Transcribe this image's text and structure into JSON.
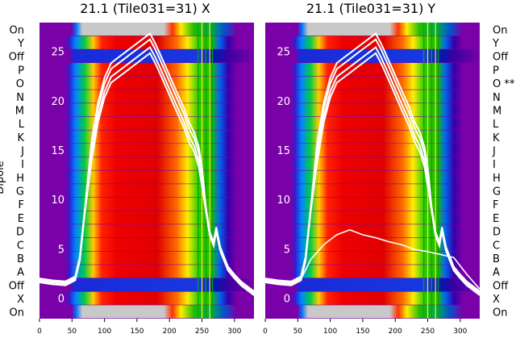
{
  "chart_data": [
    {
      "type": "heatmap",
      "title": "21.1 (Tile031=31) X",
      "ylabel": "Dipole",
      "x_ticks": [
        0,
        50,
        100,
        150,
        200,
        250,
        300
      ],
      "xlim": [
        0,
        330
      ],
      "row_labels": [
        "On",
        "Y",
        "Off",
        "P",
        "O",
        "N",
        "M",
        "L",
        "K",
        "J",
        "I",
        "H",
        "G",
        "F",
        "E",
        "D",
        "C",
        "B",
        "A",
        "Off",
        "X",
        "On"
      ],
      "annotation": "",
      "overlay_ticks": [
        25,
        20,
        15,
        10,
        5,
        0
      ],
      "overlay_range": [
        -2,
        28
      ],
      "overlay_curve": {
        "x": [
          0,
          20,
          40,
          55,
          62,
          70,
          80,
          90,
          100,
          110,
          120,
          130,
          140,
          150,
          160,
          170,
          178,
          185,
          195,
          205,
          215,
          222,
          230,
          238,
          245,
          250,
          256,
          262,
          268,
          272,
          278,
          284,
          290,
          300,
          310,
          320,
          330
        ],
        "y": [
          1.8,
          1.6,
          1.5,
          2.0,
          4.0,
          9.0,
          14.5,
          18.5,
          21.0,
          22.5,
          23.0,
          23.5,
          24.0,
          24.5,
          25.0,
          25.5,
          24.5,
          23.5,
          22.0,
          20.5,
          19.0,
          18.0,
          16.5,
          15.5,
          14.0,
          12.0,
          9.0,
          6.5,
          5.5,
          7.0,
          5.0,
          4.0,
          3.0,
          2.2,
          1.5,
          1.0,
          0.5
        ]
      },
      "secondary_curve": null
    },
    {
      "type": "heatmap",
      "title": "21.1 (Tile031=31) Y",
      "ylabel": "",
      "x_ticks": [
        0,
        50,
        100,
        150,
        200,
        250,
        300
      ],
      "xlim": [
        0,
        330
      ],
      "row_labels": [
        "On",
        "Y",
        "Off",
        "P",
        "O",
        "N",
        "M",
        "L",
        "K",
        "J",
        "I",
        "H",
        "G",
        "F",
        "E",
        "D",
        "C",
        "B",
        "A",
        "Off",
        "X",
        "On"
      ],
      "annotation": "**",
      "overlay_ticks": [
        25,
        20,
        15,
        10,
        5,
        0
      ],
      "overlay_range": [
        -2,
        28
      ],
      "overlay_curve": {
        "x": [
          0,
          20,
          40,
          55,
          62,
          70,
          80,
          90,
          100,
          110,
          120,
          130,
          140,
          150,
          160,
          170,
          178,
          185,
          195,
          205,
          215,
          222,
          230,
          238,
          245,
          250,
          256,
          262,
          268,
          272,
          278,
          284,
          290,
          300,
          310,
          320,
          330
        ],
        "y": [
          1.8,
          1.6,
          1.5,
          2.0,
          4.0,
          9.0,
          14.5,
          18.5,
          21.0,
          22.5,
          23.0,
          23.5,
          24.0,
          24.5,
          25.0,
          25.5,
          24.5,
          23.5,
          22.0,
          20.5,
          19.0,
          18.0,
          16.5,
          15.5,
          14.0,
          12.0,
          9.0,
          6.5,
          5.5,
          7.0,
          5.0,
          4.0,
          3.0,
          2.2,
          1.5,
          1.0,
          0.5
        ]
      },
      "secondary_curve": {
        "x": [
          0,
          20,
          40,
          55,
          70,
          90,
          110,
          130,
          150,
          170,
          190,
          210,
          230,
          250,
          270,
          290,
          310,
          330
        ],
        "y": [
          1.8,
          1.6,
          1.5,
          2.0,
          4.0,
          5.5,
          6.5,
          7.0,
          6.5,
          6.2,
          5.8,
          5.5,
          5.0,
          4.8,
          4.5,
          4.2,
          2.5,
          1.0
        ]
      }
    }
  ]
}
